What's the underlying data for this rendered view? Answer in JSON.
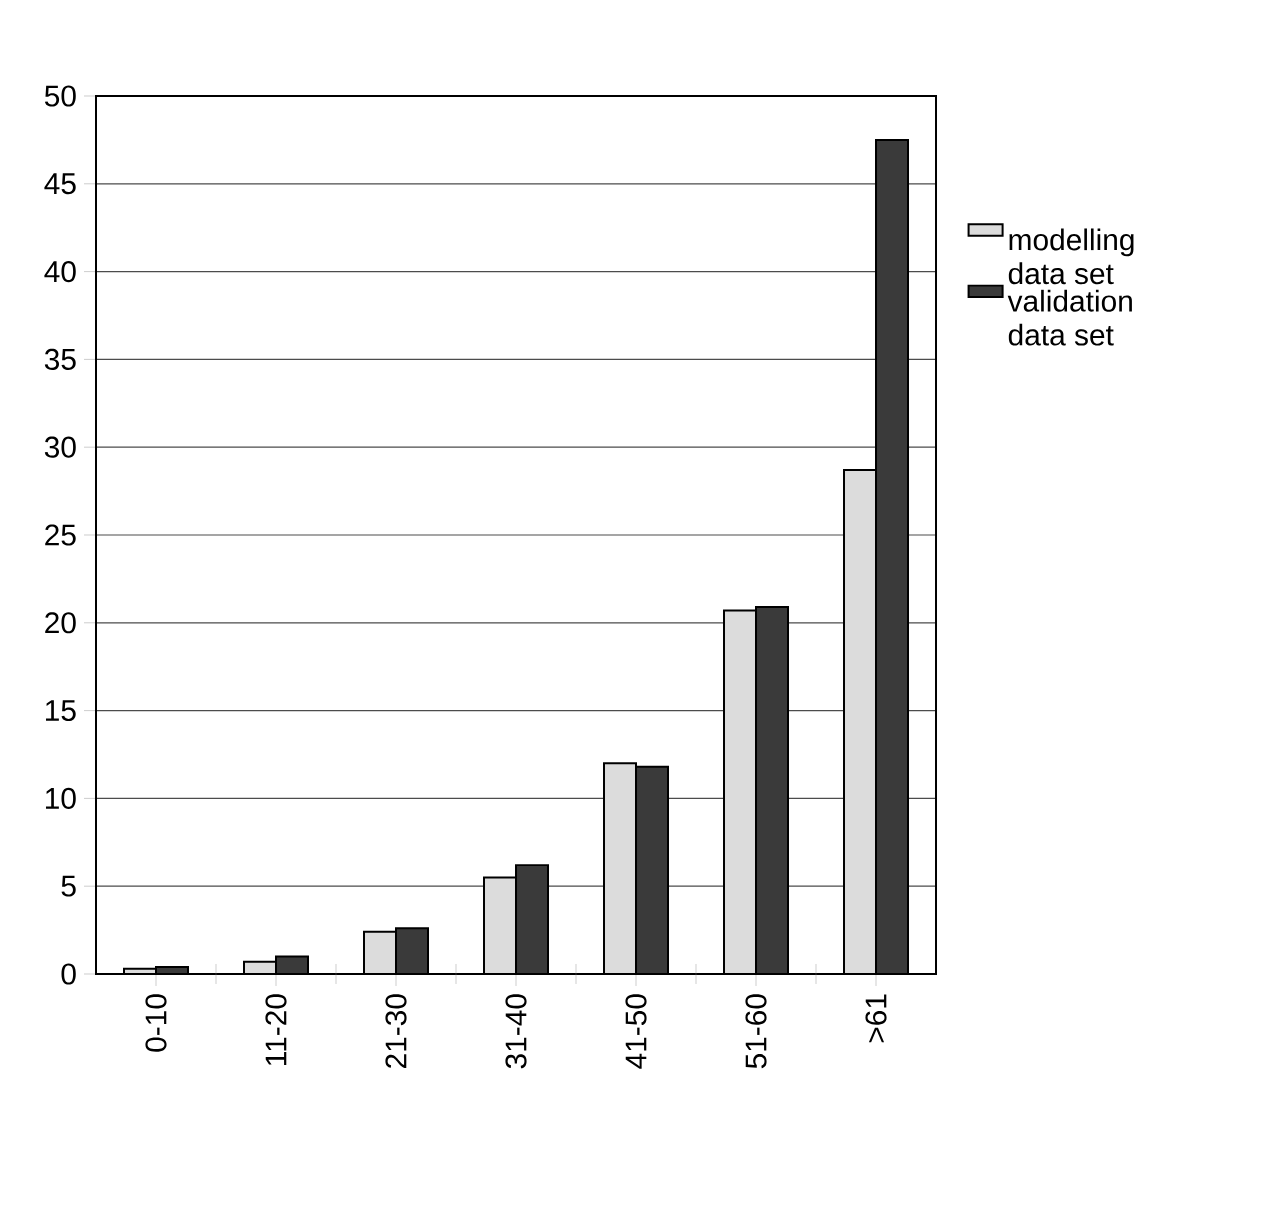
{
  "chart_data": {
    "type": "bar",
    "categories": [
      "0-10",
      "11-20",
      "21-30",
      "31-40",
      "41-50",
      "51-60",
      ">61"
    ],
    "series": [
      {
        "name": "modelling data set",
        "color": "#dcdcdc",
        "values": [
          0.3,
          0.7,
          2.4,
          5.5,
          12.0,
          20.7,
          28.7
        ]
      },
      {
        "name": "validation data set",
        "color": "#3a3a3a",
        "values": [
          0.4,
          1.0,
          2.6,
          6.2,
          11.8,
          20.9,
          47.5
        ]
      }
    ],
    "ylim": [
      0,
      50
    ],
    "yticks": [
      0,
      5,
      10,
      15,
      20,
      25,
      30,
      35,
      40,
      45,
      50
    ],
    "grid": "y",
    "legend": "right"
  }
}
